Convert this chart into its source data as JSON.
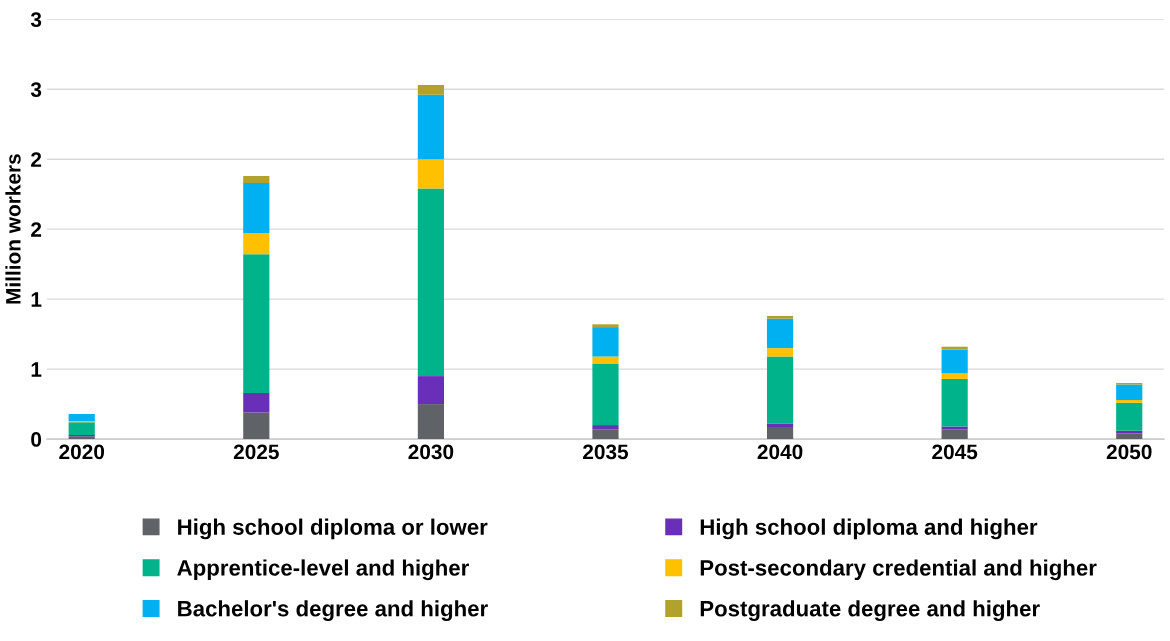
{
  "chart_data": {
    "type": "bar",
    "stacked": true,
    "ylabel": "Million workers",
    "categories": [
      "2020",
      "2025",
      "2030",
      "2035",
      "2040",
      "2045",
      "2050"
    ],
    "series": [
      {
        "name": "High school diploma or lower",
        "color": "#5f6368",
        "values": [
          0.02,
          0.19,
          0.25,
          0.07,
          0.08,
          0.07,
          0.04
        ]
      },
      {
        "name": "High school diploma and higher",
        "color": "#6a2fb8",
        "values": [
          0.01,
          0.14,
          0.2,
          0.03,
          0.03,
          0.02,
          0.02
        ]
      },
      {
        "name": "Apprentice-level and higher",
        "color": "#00b38a",
        "values": [
          0.09,
          0.99,
          1.34,
          0.44,
          0.48,
          0.34,
          0.2
        ]
      },
      {
        "name": "Post-secondary credential and higher",
        "color": "#ffc000",
        "values": [
          0.01,
          0.15,
          0.21,
          0.05,
          0.06,
          0.04,
          0.02
        ]
      },
      {
        "name": "Bachelor's degree and higher",
        "color": "#00b0f0",
        "values": [
          0.05,
          0.36,
          0.46,
          0.21,
          0.21,
          0.17,
          0.11
        ]
      },
      {
        "name": "Postgraduate degree and higher",
        "color": "#b0a22c",
        "values": [
          0.0,
          0.05,
          0.07,
          0.02,
          0.02,
          0.02,
          0.01
        ]
      }
    ],
    "ylim": [
      0,
      3
    ],
    "yticks": [
      0,
      {
        "value": 0.5,
        "label": "1"
      },
      1,
      {
        "value": 1.5,
        "label": "2"
      },
      2,
      {
        "value": 2.5,
        "label": "3"
      },
      3
    ],
    "grid": "y",
    "legend": "bottom"
  }
}
